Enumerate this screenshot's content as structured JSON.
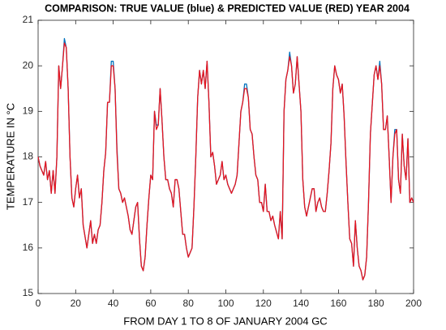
{
  "chart_data": {
    "type": "line",
    "title": "COMPARISON: TRUE VALUE (blue) & PREDICTED VALUE (RED) YEAR 2004",
    "xlabel": "FROM DAY 1 TO 8 OF JANUARY 2004 GC",
    "ylabel": "TEMPERATURE IN °C",
    "xlim": [
      0,
      200
    ],
    "ylim": [
      15,
      21
    ],
    "xticks": [
      0,
      20,
      40,
      60,
      80,
      100,
      120,
      140,
      160,
      180,
      200
    ],
    "yticks": [
      15,
      16,
      17,
      18,
      19,
      20,
      21
    ],
    "grid": false,
    "x": [
      0,
      1,
      2,
      3,
      4,
      5,
      6,
      7,
      8,
      9,
      10,
      11,
      12,
      13,
      14,
      15,
      16,
      17,
      18,
      19,
      20,
      21,
      22,
      23,
      24,
      26,
      27,
      28,
      29,
      30,
      31,
      32,
      33,
      34,
      35,
      36,
      37,
      38,
      39,
      40,
      41,
      42,
      43,
      44,
      45,
      46,
      47,
      48,
      49,
      50,
      51,
      52,
      53,
      54,
      55,
      56,
      57,
      58,
      59,
      60,
      61,
      62,
      63,
      64,
      65,
      66,
      67,
      68,
      69,
      70,
      71,
      72,
      73,
      74,
      75,
      77,
      78,
      79,
      80,
      81,
      82,
      83,
      84,
      85,
      86,
      87,
      88,
      89,
      90,
      91,
      92,
      93,
      94,
      95,
      96,
      97,
      98,
      99,
      100,
      101,
      102,
      103,
      104,
      105,
      106,
      107,
      108,
      109,
      110,
      111,
      112,
      113,
      114,
      115,
      116,
      117,
      118,
      119,
      120,
      121,
      122,
      123,
      124,
      125,
      126,
      128,
      129,
      130,
      131,
      132,
      133,
      134,
      135,
      136,
      137,
      138,
      139,
      140,
      141,
      142,
      143,
      144,
      145,
      146,
      147,
      148,
      149,
      150,
      151,
      152,
      153,
      154,
      155,
      156,
      157,
      158,
      159,
      160,
      161,
      162,
      163,
      164,
      165,
      166,
      167,
      168,
      169,
      170,
      171,
      172,
      173,
      174,
      175,
      176,
      177,
      179,
      180,
      181,
      182,
      183,
      184,
      185,
      186,
      187,
      188,
      189,
      190,
      191,
      192,
      193,
      194,
      195,
      196,
      197,
      198,
      199,
      200
    ],
    "series": [
      {
        "name": "TRUE VALUE",
        "color": "#0072bd",
        "values": [
          18.0,
          17.8,
          17.7,
          17.6,
          17.9,
          17.5,
          17.7,
          17.2,
          17.7,
          17.2,
          18.0,
          20.0,
          19.5,
          20.0,
          20.6,
          20.4,
          19.5,
          18.0,
          17.1,
          16.9,
          17.3,
          17.6,
          17.1,
          17.3,
          16.5,
          16.0,
          16.3,
          16.6,
          16.1,
          16.3,
          16.1,
          16.4,
          16.5,
          17.0,
          17.7,
          18.1,
          19.2,
          19.2,
          20.1,
          20.1,
          19.5,
          18.2,
          17.3,
          17.2,
          17.0,
          17.1,
          16.9,
          16.7,
          16.4,
          16.3,
          16.6,
          16.9,
          17.0,
          16.2,
          15.6,
          15.5,
          15.8,
          16.5,
          17.1,
          17.6,
          17.5,
          19.0,
          18.7,
          18.7,
          19.5,
          18.8,
          18.0,
          17.5,
          17.5,
          17.3,
          17.2,
          16.9,
          17.5,
          17.5,
          17.3,
          16.3,
          16.3,
          16.0,
          15.8,
          15.9,
          16.0,
          16.9,
          18.0,
          19.3,
          19.9,
          19.6,
          19.9,
          19.5,
          20.1,
          19.2,
          18.0,
          18.1,
          17.8,
          17.4,
          17.5,
          17.6,
          17.9,
          17.5,
          17.6,
          17.4,
          17.3,
          17.2,
          17.3,
          17.4,
          17.6,
          18.3,
          19.0,
          19.2,
          19.6,
          19.6,
          19.3,
          18.6,
          18.5,
          18.0,
          17.6,
          17.5,
          17.0,
          17.0,
          16.8,
          17.4,
          16.8,
          16.8,
          16.6,
          16.7,
          16.5,
          16.2,
          16.8,
          16.2,
          19.0,
          19.7,
          19.9,
          20.3,
          20.0,
          19.4,
          19.6,
          20.2,
          19.6,
          19.0,
          17.5,
          16.9,
          16.7,
          16.9,
          17.1,
          17.3,
          17.3,
          16.8,
          17.0,
          17.1,
          16.9,
          16.8,
          16.8,
          17.2,
          17.7,
          18.3,
          19.5,
          20.0,
          19.8,
          19.7,
          19.4,
          19.6,
          18.9,
          17.9,
          17.0,
          16.2,
          16.1,
          15.6,
          16.6,
          16.0,
          15.6,
          15.5,
          15.3,
          15.4,
          15.8,
          17.0,
          18.5,
          19.8,
          20.0,
          19.7,
          20.1,
          19.6,
          18.6,
          18.6,
          18.9,
          18.0,
          17.0,
          18.0,
          18.6,
          18.6,
          17.5,
          17.2,
          18.5,
          17.8,
          17.5,
          18.4,
          17.0,
          17.1,
          17.0
        ]
      },
      {
        "name": "PREDICTED VALUE",
        "color": "#e8141e",
        "values": [
          18.0,
          17.8,
          17.7,
          17.6,
          17.9,
          17.5,
          17.7,
          17.2,
          17.7,
          17.2,
          18.0,
          20.0,
          19.5,
          20.0,
          20.5,
          20.4,
          19.5,
          18.0,
          17.1,
          16.9,
          17.3,
          17.6,
          17.1,
          17.3,
          16.5,
          16.0,
          16.3,
          16.6,
          16.1,
          16.3,
          16.1,
          16.4,
          16.5,
          17.0,
          17.7,
          18.1,
          19.2,
          19.2,
          20.0,
          20.0,
          19.5,
          18.1,
          17.3,
          17.2,
          17.0,
          17.1,
          16.9,
          16.7,
          16.4,
          16.3,
          16.6,
          16.9,
          17.0,
          16.2,
          15.6,
          15.5,
          15.8,
          16.5,
          17.1,
          17.6,
          17.5,
          19.0,
          18.6,
          18.7,
          19.5,
          18.8,
          18.0,
          17.5,
          17.5,
          17.3,
          17.2,
          16.9,
          17.5,
          17.5,
          17.3,
          16.3,
          16.3,
          16.0,
          15.8,
          15.9,
          16.0,
          16.9,
          18.0,
          19.3,
          19.9,
          19.6,
          19.9,
          19.5,
          20.1,
          19.2,
          18.0,
          18.1,
          17.8,
          17.4,
          17.5,
          17.6,
          17.9,
          17.5,
          17.6,
          17.4,
          17.3,
          17.2,
          17.3,
          17.4,
          17.6,
          18.3,
          19.0,
          19.2,
          19.5,
          19.5,
          19.3,
          18.6,
          18.5,
          18.0,
          17.6,
          17.5,
          17.0,
          17.0,
          16.8,
          17.4,
          16.8,
          16.8,
          16.6,
          16.7,
          16.5,
          16.2,
          16.8,
          16.2,
          19.0,
          19.7,
          19.9,
          20.2,
          20.0,
          19.4,
          19.6,
          20.2,
          19.6,
          19.0,
          17.5,
          16.9,
          16.7,
          16.9,
          17.1,
          17.3,
          17.3,
          16.8,
          17.0,
          17.1,
          16.9,
          16.8,
          16.8,
          17.2,
          17.7,
          18.3,
          19.5,
          20.0,
          19.8,
          19.7,
          19.4,
          19.6,
          18.9,
          17.9,
          17.0,
          16.2,
          16.1,
          15.6,
          16.6,
          16.0,
          15.6,
          15.5,
          15.3,
          15.4,
          15.8,
          17.0,
          18.5,
          19.8,
          20.0,
          19.7,
          20.0,
          19.6,
          18.6,
          18.6,
          18.9,
          18.0,
          17.0,
          18.0,
          18.5,
          18.6,
          17.5,
          17.2,
          18.5,
          17.8,
          17.5,
          18.4,
          17.0,
          17.1,
          17.0
        ]
      }
    ]
  }
}
